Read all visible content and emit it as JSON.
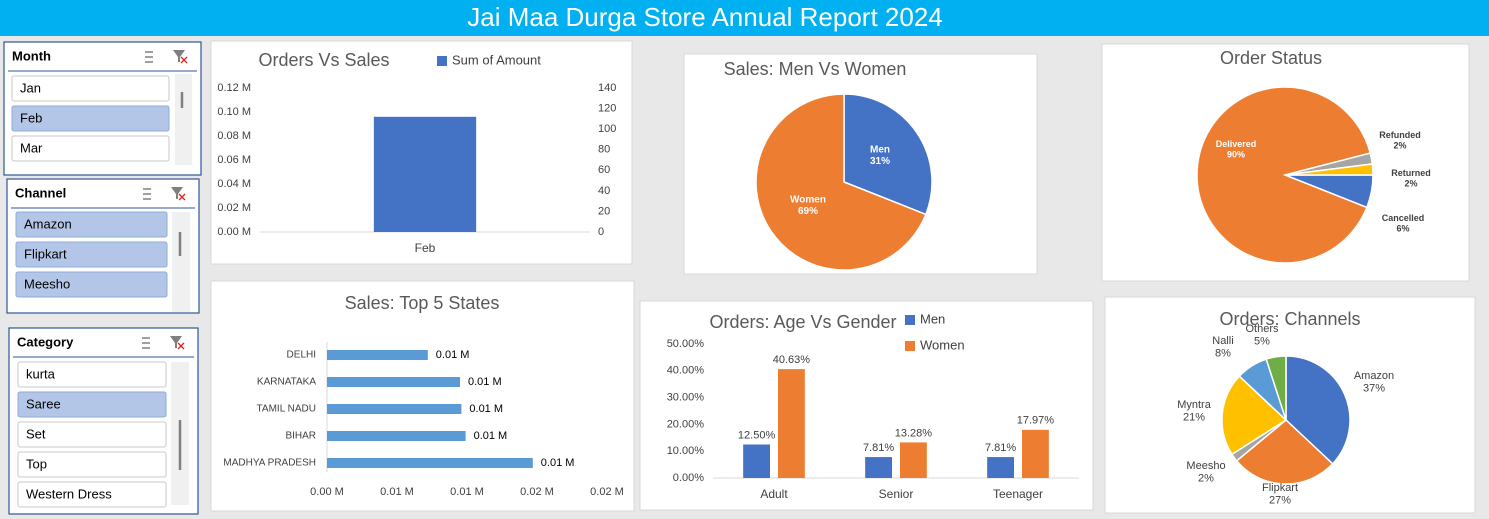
{
  "header": {
    "title": "Jai Maa Durga Store Annual Report 2024"
  },
  "slicers": [
    {
      "title": "Month",
      "items": [
        {
          "label": "Jan",
          "selected": false
        },
        {
          "label": "Feb",
          "selected": true
        },
        {
          "label": "Mar",
          "selected": false
        }
      ]
    },
    {
      "title": "Channel",
      "items": [
        {
          "label": "Amazon",
          "selected": true
        },
        {
          "label": "Flipkart",
          "selected": true
        },
        {
          "label": "Meesho",
          "selected": true
        }
      ]
    },
    {
      "title": "Category",
      "items": [
        {
          "label": "kurta",
          "selected": false
        },
        {
          "label": "Saree",
          "selected": true
        },
        {
          "label": "Set",
          "selected": false
        },
        {
          "label": "Top",
          "selected": false
        },
        {
          "label": "Western Dress",
          "selected": false
        }
      ]
    }
  ],
  "chart_data": [
    {
      "type": "bar",
      "title": "Orders Vs Sales",
      "categories": [
        "Feb"
      ],
      "series": [
        {
          "name": "Sum of Amount",
          "color": "#4472c4",
          "values": [
            0.096
          ]
        }
      ],
      "ylim": [
        0,
        0.12
      ],
      "yticks": [
        {
          "value": 0,
          "label": "0.00 M"
        },
        {
          "value": 0.02,
          "label": "0.02 M"
        },
        {
          "value": 0.04,
          "label": "0.04 M"
        },
        {
          "value": 0.06,
          "label": "0.06 M"
        },
        {
          "value": 0.08,
          "label": "0.08 M"
        },
        {
          "value": 0.1,
          "label": "0.10 M"
        },
        {
          "value": 0.12,
          "label": "0.12 M"
        }
      ],
      "y2lim": [
        0,
        140
      ],
      "y2ticks": [
        0,
        20,
        40,
        60,
        80,
        100,
        120,
        140
      ]
    },
    {
      "type": "pie",
      "title": "Sales: Men Vs Women",
      "categories": [
        "Men",
        "Women"
      ],
      "values": [
        31,
        69
      ],
      "value_labels": [
        "31%",
        "69%"
      ],
      "colors": [
        "#4472c4",
        "#ed7d31"
      ]
    },
    {
      "type": "pie",
      "title": "Order Status",
      "categories": [
        "Cancelled",
        "Delivered",
        "Refunded",
        "Returned"
      ],
      "values": [
        6,
        90,
        2,
        2
      ],
      "value_labels": [
        "6%",
        "90%",
        "2%",
        "2%"
      ],
      "colors": [
        "#4472c4",
        "#ed7d31",
        "#a5a5a5",
        "#ffc000"
      ]
    },
    {
      "type": "hbar",
      "title": "Sales: Top 5 States",
      "categories": [
        "DELHI",
        "KARNATAKA",
        "TAMIL NADU",
        "BIHAR",
        "MADHYA PRADESH"
      ],
      "values": [
        0.0072,
        0.0095,
        0.0096,
        0.0099,
        0.0147
      ],
      "value_labels": [
        "0.01 M",
        "0.01 M",
        "0.01 M",
        "0.01 M",
        "0.01 M"
      ],
      "color": "#5b9bd5",
      "xlim": [
        0,
        0.02
      ],
      "xticks": [
        {
          "value": 0,
          "label": "0.00 M"
        },
        {
          "value": 0.005,
          "label": "0.01 M"
        },
        {
          "value": 0.01,
          "label": "0.01 M"
        },
        {
          "value": 0.015,
          "label": "0.02 M"
        },
        {
          "value": 0.02,
          "label": "0.02 M"
        }
      ]
    },
    {
      "type": "bar",
      "title": "Orders: Age Vs Gender",
      "categories": [
        "Adult",
        "Senior",
        "Teenager"
      ],
      "series": [
        {
          "name": "Men",
          "color": "#4472c4",
          "values": [
            12.5,
            7.81,
            7.81
          ],
          "value_labels": [
            "12.50%",
            "7.81%",
            "7.81%"
          ]
        },
        {
          "name": "Women",
          "color": "#ed7d31",
          "values": [
            40.63,
            13.28,
            17.97
          ],
          "value_labels": [
            "40.63%",
            "13.28%",
            "17.97%"
          ]
        }
      ],
      "ylim": [
        0,
        50
      ],
      "yticks": [
        {
          "value": 0,
          "label": "0.00%"
        },
        {
          "value": 10,
          "label": "10.00%"
        },
        {
          "value": 20,
          "label": "20.00%"
        },
        {
          "value": 30,
          "label": "30.00%"
        },
        {
          "value": 40,
          "label": "40.00%"
        },
        {
          "value": 50,
          "label": "50.00%"
        }
      ]
    },
    {
      "type": "pie",
      "title": "Orders: Channels",
      "categories": [
        "Amazon",
        "Flipkart",
        "Meesho",
        "Myntra",
        "Nalli",
        "Others"
      ],
      "values": [
        37,
        27,
        2,
        21,
        8,
        5
      ],
      "value_labels": [
        "37%",
        "27%",
        "2%",
        "21%",
        "8%",
        "5%"
      ],
      "colors": [
        "#4472c4",
        "#ed7d31",
        "#a5a5a5",
        "#ffc000",
        "#5b9bd5",
        "#70ad47"
      ]
    }
  ]
}
